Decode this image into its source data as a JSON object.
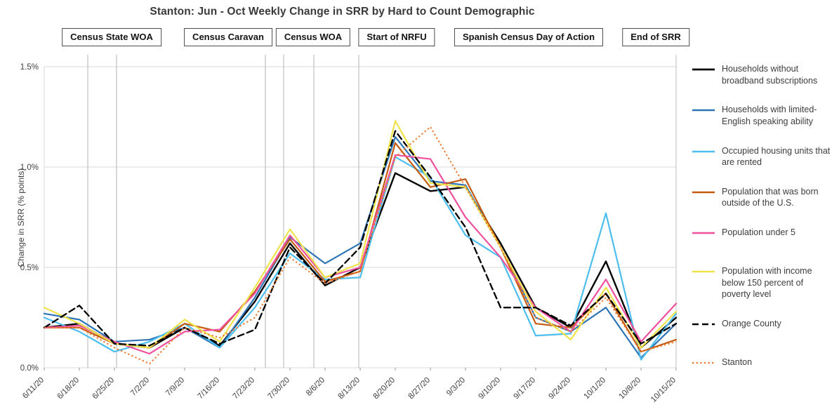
{
  "chart_data": {
    "type": "line",
    "title": "Stanton: Jun - Oct Weekly Change in SRR by Hard to Count Demographic",
    "ylabel": "Change in SRR (% points)",
    "ylim": [
      0,
      1.5
    ],
    "grid": "horizontal",
    "legend_position": "right",
    "yticks": [
      {
        "label": "0.0%",
        "value": 0
      },
      {
        "label": "0.5%",
        "value": 0.5
      },
      {
        "label": "1.0%",
        "value": 1.0
      },
      {
        "label": "1.5%",
        "value": 1.5
      }
    ],
    "x": [
      "6/11/20",
      "6/18/20",
      "6/25/20",
      "7/2/20",
      "7/9/20",
      "7/16/20",
      "7/23/20",
      "7/30/20",
      "8/6/20",
      "8/13/20",
      "8/20/20",
      "8/27/20",
      "9/3/20",
      "9/10/20",
      "9/17/20",
      "9/24/20",
      "10/1/20",
      "10/8/20",
      "10/15/20"
    ],
    "series": [
      {
        "name": "Households without broadband subscriptions",
        "color": "#000000",
        "style": "solid",
        "width": 2.4,
        "values": [
          0.2,
          0.22,
          0.12,
          0.1,
          0.2,
          0.11,
          0.33,
          0.62,
          0.41,
          0.5,
          0.97,
          0.88,
          0.9,
          0.62,
          0.3,
          0.2,
          0.53,
          0.1,
          0.25
        ]
      },
      {
        "name": "Households with limited-English speaking ability",
        "color": "#2E75B6",
        "style": "solid",
        "width": 2.2,
        "values": [
          0.27,
          0.24,
          0.13,
          0.14,
          0.2,
          0.1,
          0.35,
          0.65,
          0.52,
          0.62,
          1.15,
          0.93,
          0.91,
          0.6,
          0.25,
          0.18,
          0.3,
          0.05,
          0.22
        ]
      },
      {
        "name": "Occupied housing units that are rented",
        "color": "#4DBEEE",
        "style": "solid",
        "width": 2.2,
        "values": [
          0.25,
          0.18,
          0.08,
          0.13,
          0.22,
          0.1,
          0.3,
          0.57,
          0.44,
          0.45,
          1.05,
          0.95,
          0.66,
          0.55,
          0.16,
          0.17,
          0.77,
          0.04,
          0.27
        ]
      },
      {
        "name": "Population that was born outside of the U.S.",
        "color": "#C55A11",
        "style": "solid",
        "width": 2.2,
        "values": [
          0.2,
          0.2,
          0.12,
          0.1,
          0.22,
          0.18,
          0.38,
          0.64,
          0.43,
          0.48,
          1.12,
          0.9,
          0.94,
          0.6,
          0.22,
          0.2,
          0.37,
          0.08,
          0.14
        ]
      },
      {
        "name": "Population under 5",
        "color": "#F0509E",
        "style": "solid",
        "width": 2.2,
        "values": [
          0.2,
          0.21,
          0.13,
          0.07,
          0.18,
          0.19,
          0.37,
          0.66,
          0.45,
          0.5,
          1.06,
          1.04,
          0.75,
          0.55,
          0.3,
          0.18,
          0.44,
          0.13,
          0.32
        ]
      },
      {
        "name": "Population with income below 150 percent of poverty level",
        "color": "#EFE34C",
        "style": "solid",
        "width": 2.2,
        "values": [
          0.3,
          0.22,
          0.12,
          0.1,
          0.24,
          0.13,
          0.4,
          0.69,
          0.45,
          0.52,
          1.23,
          0.92,
          0.9,
          0.6,
          0.28,
          0.14,
          0.4,
          0.1,
          0.28
        ]
      },
      {
        "name": "Orange County",
        "color": "#000000",
        "style": "dashed",
        "width": 2.3,
        "values": [
          0.2,
          0.31,
          0.12,
          0.11,
          0.2,
          0.12,
          0.19,
          0.6,
          0.42,
          0.6,
          1.18,
          0.95,
          0.7,
          0.3,
          0.3,
          0.21,
          0.37,
          0.12,
          0.22
        ]
      },
      {
        "name": "Stanton",
        "color": "#ED7D31",
        "style": "dotted",
        "width": 2.0,
        "values": [
          0.2,
          0.2,
          0.1,
          0.02,
          0.2,
          0.15,
          0.25,
          0.55,
          0.42,
          0.48,
          1.05,
          1.2,
          0.9,
          0.6,
          0.25,
          0.18,
          0.35,
          0.08,
          0.13
        ]
      }
    ],
    "events": {
      "boxes": [
        {
          "label": "Census State WOA",
          "center_index": 1.92
        },
        {
          "label": "Census Caravan",
          "center_index": 5.24
        },
        {
          "label": "Census WOA",
          "center_index": 7.66
        },
        {
          "label": "Start of NRFU",
          "center_index": 10.04
        },
        {
          "label": "Spanish Census Day of Action",
          "center_index": 13.8
        },
        {
          "label": "End of SRR",
          "center_index": 17.42
        }
      ],
      "vlines": [
        1.24,
        2.06,
        6.3,
        6.82,
        7.68,
        8.96
      ]
    }
  }
}
